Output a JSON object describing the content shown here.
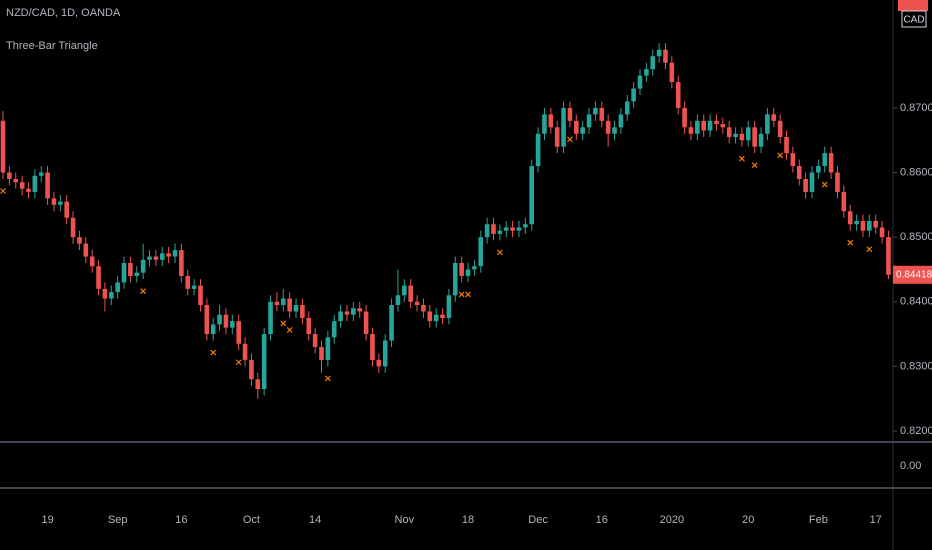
{
  "chart_data": {
    "type": "candlestick",
    "title": "NZD/CAD, 1D, OANDA",
    "indicator": "Three-Bar Triangle",
    "currency_label": "CAD",
    "up_color": "#26a69a",
    "down_color": "#ef5350",
    "signal_color": "#f57c00",
    "categories": [
      null,
      null,
      null,
      null,
      null,
      null,
      null,
      "19",
      null,
      null,
      null,
      null,
      null,
      null,
      null,
      null,
      null,
      null,
      "Sep",
      null,
      null,
      null,
      null,
      null,
      null,
      null,
      null,
      null,
      "16",
      null,
      null,
      null,
      null,
      null,
      null,
      null,
      null,
      null,
      null,
      "Oct",
      null,
      null,
      null,
      null,
      null,
      null,
      null,
      null,
      null,
      "14",
      null,
      null,
      null,
      null,
      null,
      null,
      null,
      null,
      null,
      null,
      null,
      null,
      null,
      "Nov",
      null,
      null,
      null,
      null,
      null,
      null,
      null,
      null,
      null,
      "18",
      null,
      null,
      null,
      null,
      null,
      null,
      null,
      null,
      null,
      null,
      "Dec",
      null,
      null,
      null,
      null,
      null,
      null,
      null,
      null,
      null,
      "16",
      null,
      null,
      null,
      null,
      null,
      null,
      null,
      null,
      null,
      null,
      "2020",
      null,
      null,
      null,
      null,
      null,
      null,
      null,
      null,
      null,
      null,
      null,
      "20",
      null,
      null,
      null,
      null,
      null,
      null,
      null,
      null,
      null,
      null,
      "Feb",
      null,
      null,
      null,
      null,
      null,
      null,
      null,
      null,
      "17",
      null,
      null
    ],
    "open": [
      0.868,
      0.86,
      0.859,
      0.8585,
      0.8575,
      0.857,
      0.8595,
      0.86,
      0.856,
      0.855,
      0.8555,
      0.853,
      0.85,
      0.849,
      0.847,
      0.8455,
      0.842,
      0.8405,
      0.8415,
      0.843,
      0.846,
      0.844,
      0.8445,
      0.8465,
      0.847,
      0.8465,
      0.8475,
      0.847,
      0.848,
      0.844,
      0.842,
      0.8425,
      0.8395,
      0.835,
      0.8365,
      0.838,
      0.836,
      0.837,
      0.8335,
      0.831,
      0.828,
      0.8265,
      0.835,
      0.84,
      0.8395,
      0.8405,
      0.8385,
      0.8395,
      0.8375,
      0.835,
      0.833,
      0.831,
      0.8345,
      0.837,
      0.8385,
      0.838,
      0.839,
      0.8385,
      0.835,
      0.831,
      0.83,
      0.834,
      0.8395,
      0.841,
      0.8425,
      0.84,
      0.8395,
      0.8385,
      0.837,
      0.838,
      0.8375,
      0.841,
      0.846,
      0.844,
      0.845,
      0.8455,
      0.85,
      0.852,
      0.8505,
      0.851,
      0.8515,
      0.851,
      0.8515,
      0.852,
      0.861,
      0.866,
      0.869,
      0.867,
      0.864,
      0.87,
      0.868,
      0.866,
      0.867,
      0.869,
      0.87,
      0.868,
      0.866,
      0.867,
      0.869,
      0.871,
      0.873,
      0.875,
      0.876,
      0.878,
      0.879,
      0.877,
      0.874,
      0.87,
      0.867,
      0.866,
      0.868,
      0.8665,
      0.868,
      0.8675,
      0.867,
      0.8655,
      0.866,
      0.865,
      0.867,
      0.864,
      0.866,
      0.869,
      0.868,
      0.8655,
      0.863,
      0.861,
      0.859,
      0.857,
      0.86,
      0.861,
      0.863,
      0.86,
      0.857,
      0.854,
      0.852,
      0.8525,
      0.851,
      0.8525,
      0.8515,
      0.85
    ],
    "high": [
      0.8695,
      0.861,
      0.86,
      0.8595,
      0.8585,
      0.8605,
      0.861,
      0.861,
      0.857,
      0.8565,
      0.8565,
      0.854,
      0.851,
      0.85,
      0.848,
      0.8465,
      0.843,
      0.8425,
      0.844,
      0.847,
      0.847,
      0.8455,
      0.849,
      0.848,
      0.848,
      0.8485,
      0.8485,
      0.849,
      0.849,
      0.845,
      0.8435,
      0.8435,
      0.8405,
      0.8375,
      0.8395,
      0.839,
      0.838,
      0.838,
      0.8345,
      0.832,
      0.829,
      0.836,
      0.841,
      0.8415,
      0.842,
      0.8415,
      0.8405,
      0.8405,
      0.8385,
      0.836,
      0.834,
      0.8355,
      0.838,
      0.8395,
      0.8395,
      0.84,
      0.84,
      0.8395,
      0.836,
      0.832,
      0.835,
      0.8405,
      0.845,
      0.8435,
      0.8435,
      0.841,
      0.8405,
      0.8395,
      0.839,
      0.839,
      0.842,
      0.847,
      0.847,
      0.846,
      0.8465,
      0.851,
      0.853,
      0.853,
      0.852,
      0.8525,
      0.8525,
      0.8525,
      0.853,
      0.862,
      0.867,
      0.87,
      0.87,
      0.868,
      0.871,
      0.871,
      0.869,
      0.868,
      0.87,
      0.871,
      0.871,
      0.869,
      0.868,
      0.87,
      0.872,
      0.874,
      0.876,
      0.877,
      0.879,
      0.88,
      0.88,
      0.878,
      0.875,
      0.871,
      0.868,
      0.869,
      0.869,
      0.869,
      0.869,
      0.8685,
      0.868,
      0.867,
      0.867,
      0.868,
      0.868,
      0.867,
      0.87,
      0.87,
      0.869,
      0.8665,
      0.864,
      0.862,
      0.86,
      0.861,
      0.862,
      0.864,
      0.864,
      0.861,
      0.858,
      0.855,
      0.8535,
      0.8535,
      0.8535,
      0.8535,
      0.8525,
      0.851
    ],
    "low": [
      0.859,
      0.858,
      0.8575,
      0.8565,
      0.856,
      0.856,
      0.8585,
      0.855,
      0.854,
      0.854,
      0.852,
      0.849,
      0.848,
      0.846,
      0.8445,
      0.841,
      0.8385,
      0.8395,
      0.8405,
      0.842,
      0.843,
      0.843,
      0.8435,
      0.8455,
      0.8455,
      0.8455,
      0.846,
      0.846,
      0.843,
      0.841,
      0.841,
      0.8385,
      0.834,
      0.834,
      0.8355,
      0.835,
      0.835,
      0.8325,
      0.83,
      0.827,
      0.825,
      0.8255,
      0.834,
      0.8385,
      0.8385,
      0.8375,
      0.8375,
      0.8365,
      0.834,
      0.832,
      0.829,
      0.83,
      0.8335,
      0.836,
      0.837,
      0.837,
      0.8375,
      0.834,
      0.83,
      0.829,
      0.829,
      0.833,
      0.8385,
      0.84,
      0.839,
      0.8385,
      0.8375,
      0.836,
      0.836,
      0.8365,
      0.8365,
      0.84,
      0.843,
      0.843,
      0.844,
      0.8445,
      0.849,
      0.8495,
      0.8495,
      0.85,
      0.85,
      0.85,
      0.8505,
      0.851,
      0.86,
      0.865,
      0.866,
      0.863,
      0.863,
      0.867,
      0.865,
      0.865,
      0.866,
      0.868,
      0.867,
      0.864,
      0.865,
      0.866,
      0.868,
      0.87,
      0.872,
      0.874,
      0.875,
      0.877,
      0.876,
      0.873,
      0.869,
      0.866,
      0.865,
      0.865,
      0.8655,
      0.8655,
      0.8665,
      0.866,
      0.8645,
      0.8645,
      0.864,
      0.864,
      0.863,
      0.863,
      0.865,
      0.867,
      0.8645,
      0.862,
      0.86,
      0.858,
      0.856,
      0.856,
      0.859,
      0.86,
      0.859,
      0.856,
      0.853,
      0.851,
      0.851,
      0.85,
      0.85,
      0.8505,
      0.849,
      0.8435
    ],
    "close": [
      0.86,
      0.859,
      0.8585,
      0.8575,
      0.857,
      0.8595,
      0.86,
      0.856,
      0.855,
      0.8555,
      0.853,
      0.85,
      0.849,
      0.847,
      0.8455,
      0.842,
      0.8405,
      0.8415,
      0.843,
      0.846,
      0.844,
      0.8445,
      0.8465,
      0.847,
      0.8465,
      0.8475,
      0.847,
      0.848,
      0.844,
      0.842,
      0.8425,
      0.8395,
      0.835,
      0.8365,
      0.838,
      0.836,
      0.837,
      0.8335,
      0.831,
      0.828,
      0.8265,
      0.835,
      0.84,
      0.8395,
      0.8405,
      0.8385,
      0.8395,
      0.8375,
      0.835,
      0.833,
      0.831,
      0.8345,
      0.837,
      0.8385,
      0.838,
      0.839,
      0.8385,
      0.835,
      0.831,
      0.83,
      0.834,
      0.8395,
      0.841,
      0.8425,
      0.84,
      0.8395,
      0.8385,
      0.837,
      0.838,
      0.8375,
      0.841,
      0.846,
      0.844,
      0.845,
      0.8455,
      0.85,
      0.852,
      0.8505,
      0.851,
      0.8515,
      0.851,
      0.8515,
      0.852,
      0.861,
      0.866,
      0.869,
      0.867,
      0.864,
      0.87,
      0.868,
      0.866,
      0.867,
      0.869,
      0.87,
      0.868,
      0.866,
      0.867,
      0.869,
      0.871,
      0.873,
      0.875,
      0.876,
      0.878,
      0.879,
      0.877,
      0.874,
      0.87,
      0.867,
      0.866,
      0.868,
      0.8665,
      0.868,
      0.8675,
      0.867,
      0.8655,
      0.866,
      0.865,
      0.867,
      0.864,
      0.866,
      0.869,
      0.868,
      0.8655,
      0.863,
      0.861,
      0.859,
      0.857,
      0.86,
      0.861,
      0.863,
      0.86,
      0.857,
      0.854,
      0.852,
      0.8525,
      0.851,
      0.8525,
      0.8515,
      0.85,
      0.84418
    ],
    "signals": [
      0,
      22,
      33,
      37,
      44,
      45,
      51,
      72,
      73,
      78,
      89,
      116,
      118,
      122,
      129,
      133,
      136
    ],
    "ylim": [
      0.8183,
      0.8867
    ],
    "yticks": [
      {
        "value": 0.82,
        "label": "0.82000"
      },
      {
        "value": 0.83,
        "label": "0.83000"
      },
      {
        "value": 0.84,
        "label": "0.84000"
      },
      {
        "value": 0.85,
        "label": "0.85000"
      },
      {
        "value": 0.86,
        "label": "0.86000"
      },
      {
        "value": 0.87,
        "label": "0.87000"
      }
    ],
    "lower_pane_tick": {
      "value": 0,
      "label": "0.00"
    }
  }
}
